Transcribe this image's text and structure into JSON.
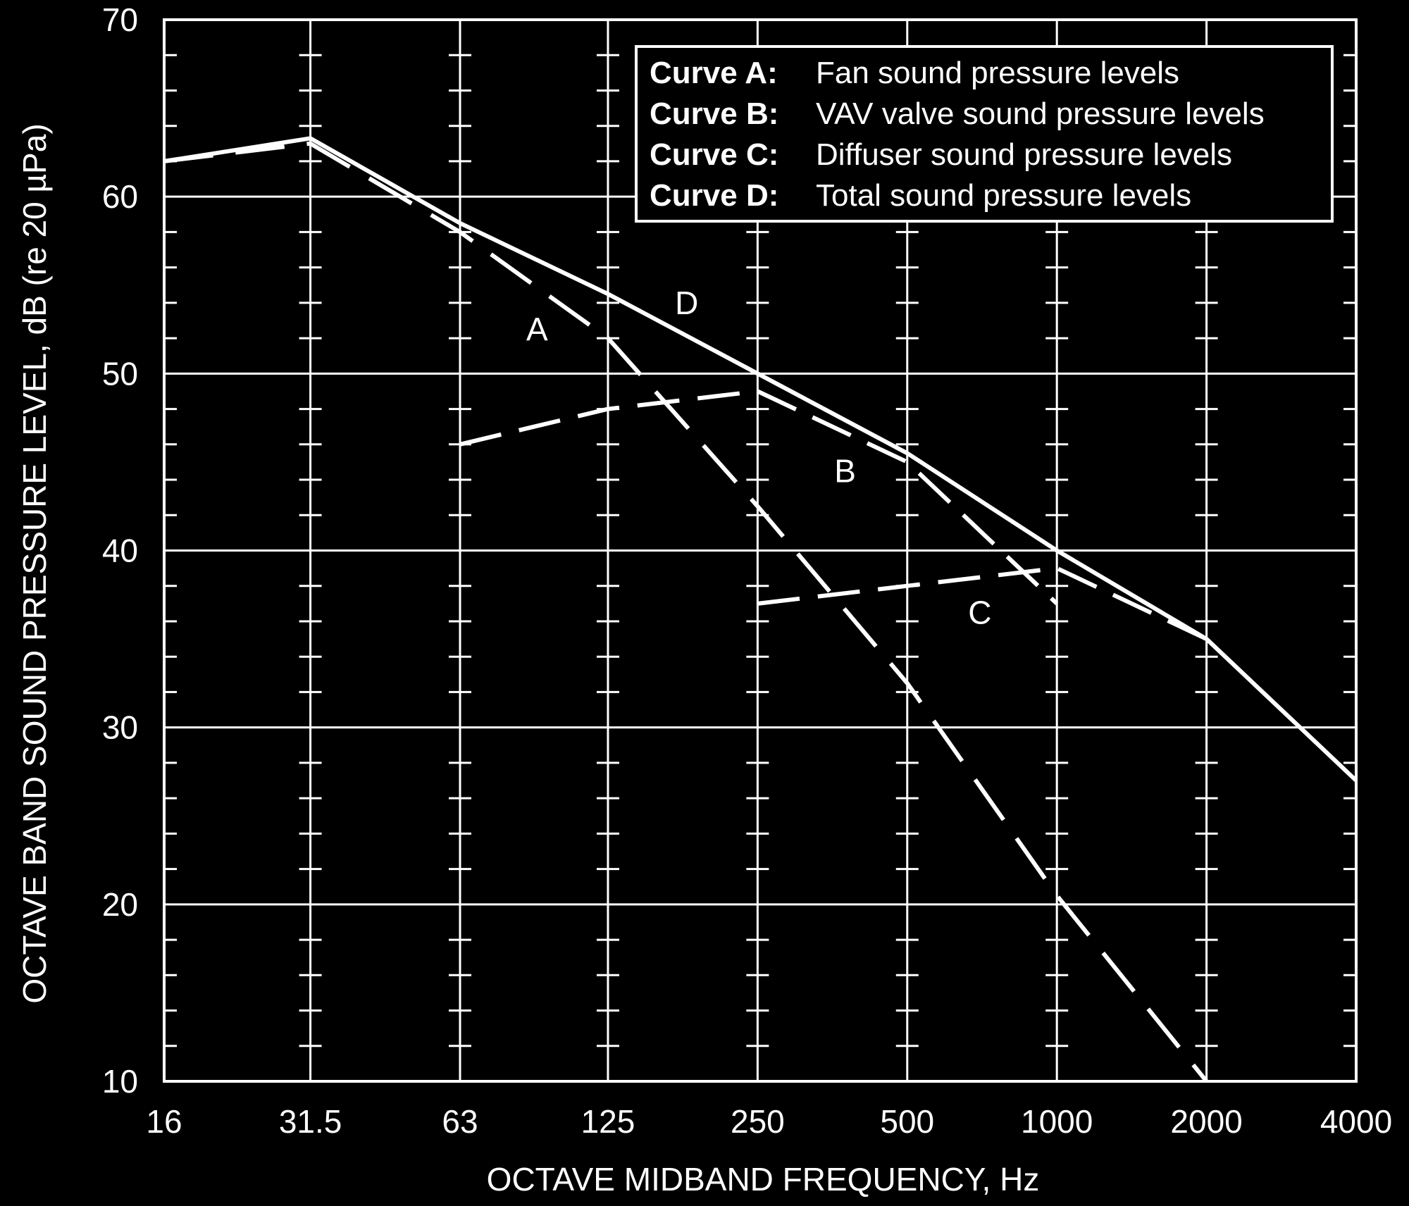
{
  "chart_data": {
    "type": "line",
    "xlabel": "OCTAVE MIDBAND FREQUENCY, Hz",
    "ylabel": "OCTAVE BAND SOUND PRESSURE LEVEL, dB (re 20 µPa)",
    "x_scale": "log2",
    "x_ticks": [
      "16",
      "31.5",
      "63",
      "125",
      "250",
      "500",
      "1000",
      "2000",
      "4000"
    ],
    "y_ticks": [
      "10",
      "20",
      "30",
      "40",
      "50",
      "60",
      "70"
    ],
    "ylim": [
      10,
      70
    ],
    "xlim": [
      16,
      4000
    ],
    "grid": "horizontal major lines every 10 dB, minor tick marks every 2 dB, vertical ticked lines at octave bands",
    "legend_position": "top-right",
    "legend": [
      {
        "key": "Curve A:",
        "desc": "Fan sound pressure levels"
      },
      {
        "key": "Curve B:",
        "desc": "VAV valve sound pressure levels"
      },
      {
        "key": "Curve C:",
        "desc": "Diffuser sound pressure levels"
      },
      {
        "key": "Curve D:",
        "desc": "Total sound pressure levels"
      }
    ],
    "series": [
      {
        "name": "A",
        "style": "dashed",
        "x": [
          16,
          31.5,
          63,
          125,
          250,
          500,
          1000,
          2000
        ],
        "y": [
          62,
          63,
          58,
          52,
          42.5,
          32.5,
          20.5,
          10
        ]
      },
      {
        "name": "B",
        "style": "dashed",
        "x": [
          63,
          125,
          250,
          500,
          1000
        ],
        "y": [
          46,
          48,
          49,
          45,
          37
        ]
      },
      {
        "name": "C",
        "style": "dashed",
        "x": [
          250,
          500,
          1000,
          2000
        ],
        "y": [
          37,
          38,
          39,
          35
        ]
      },
      {
        "name": "D",
        "style": "solid",
        "x": [
          16,
          31.5,
          63,
          125,
          250,
          500,
          1000,
          2000,
          4000
        ],
        "y": [
          62,
          63.3,
          58.5,
          54.5,
          50,
          45.5,
          40,
          35,
          27
        ]
      }
    ],
    "curve_labels": [
      {
        "text": "A",
        "x": 90,
        "y": 52.5
      },
      {
        "text": "D",
        "x": 180,
        "y": 54
      },
      {
        "text": "B",
        "x": 375,
        "y": 44.5
      },
      {
        "text": "C",
        "x": 700,
        "y": 36.5
      }
    ]
  },
  "colors": {
    "background": "#000000",
    "foreground": "#ffffff"
  }
}
